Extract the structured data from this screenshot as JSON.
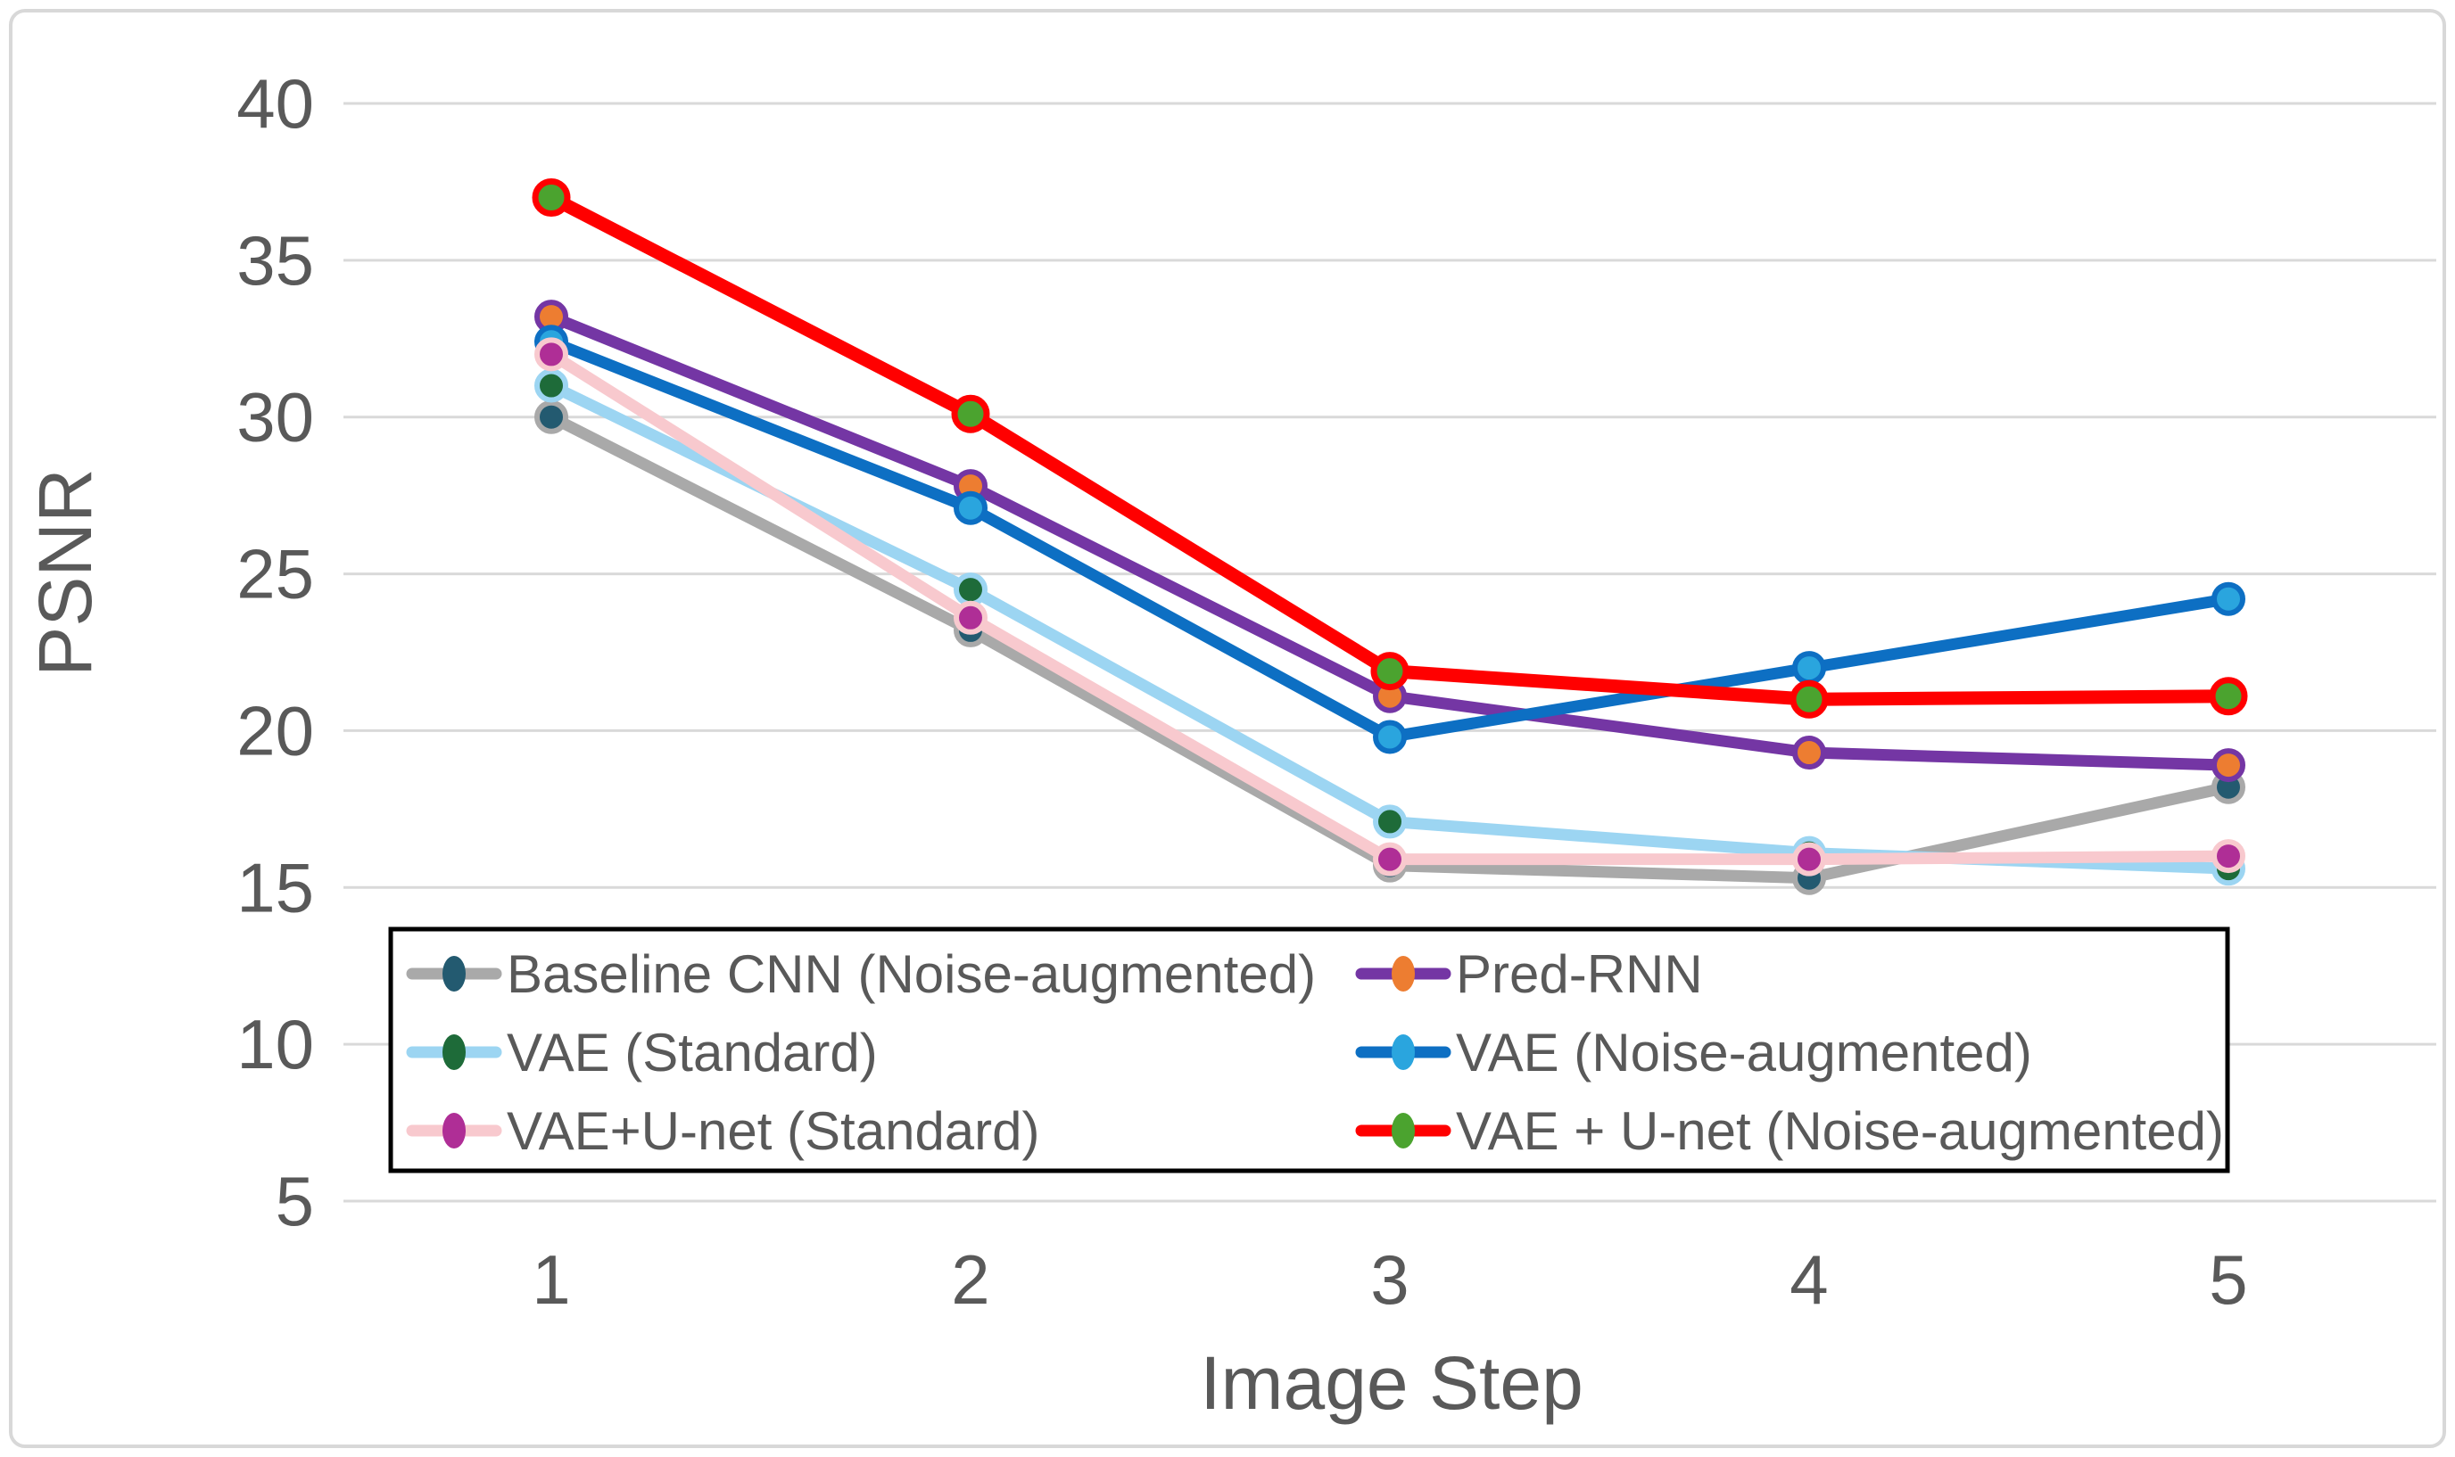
{
  "chart_data": {
    "type": "line",
    "x": [
      1,
      2,
      3,
      4,
      5
    ],
    "xlabel": "Image Step",
    "ylabel": "PSNR",
    "ylim": [
      5,
      40
    ],
    "yticks": [
      5,
      10,
      15,
      20,
      25,
      30,
      35,
      40
    ],
    "grid": "horizontal",
    "legend_position": "bottom-inside-framed-box",
    "legend_columns": 2,
    "series": [
      {
        "name": "Baseline CNN (Noise-augmented)",
        "line_color": "#A9A9A9",
        "marker_color": "#235A70",
        "values": [
          30.0,
          23.2,
          15.7,
          15.3,
          18.2
        ]
      },
      {
        "name": "Pred-RNN",
        "line_color": "#7436A4",
        "marker_color": "#ED7D31",
        "values": [
          33.2,
          27.8,
          21.1,
          19.3,
          18.9
        ]
      },
      {
        "name": "VAE (Standard)",
        "line_color": "#9CD5F2",
        "marker_color": "#1E6B39",
        "values": [
          31.0,
          24.5,
          17.1,
          16.1,
          15.6
        ]
      },
      {
        "name": "VAE (Noise-augmented)",
        "line_color": "#0D6FC3",
        "marker_color": "#2AA5DE",
        "values": [
          32.4,
          27.1,
          19.8,
          22.0,
          24.2
        ]
      },
      {
        "name": "VAE+U-net (Standard)",
        "line_color": "#F8C9CE",
        "marker_color": "#AF2E96",
        "values": [
          32.0,
          23.6,
          15.9,
          15.9,
          16.0
        ]
      },
      {
        "name": "VAE + U-net (Noise-augmented)",
        "line_color": "#FF0000",
        "marker_color": "#4BA32F",
        "values": [
          37.0,
          30.1,
          21.9,
          21.0,
          21.1
        ]
      }
    ],
    "legend_left_column_series": [
      0,
      2,
      4
    ],
    "legend_right_column_series": [
      1,
      3,
      5
    ]
  },
  "colors": {
    "text": "#595959",
    "gridline": "#D9D9D9",
    "outer_border": "#D8D8D8",
    "legend_border": "#000000",
    "background": "#FFFFFF"
  }
}
